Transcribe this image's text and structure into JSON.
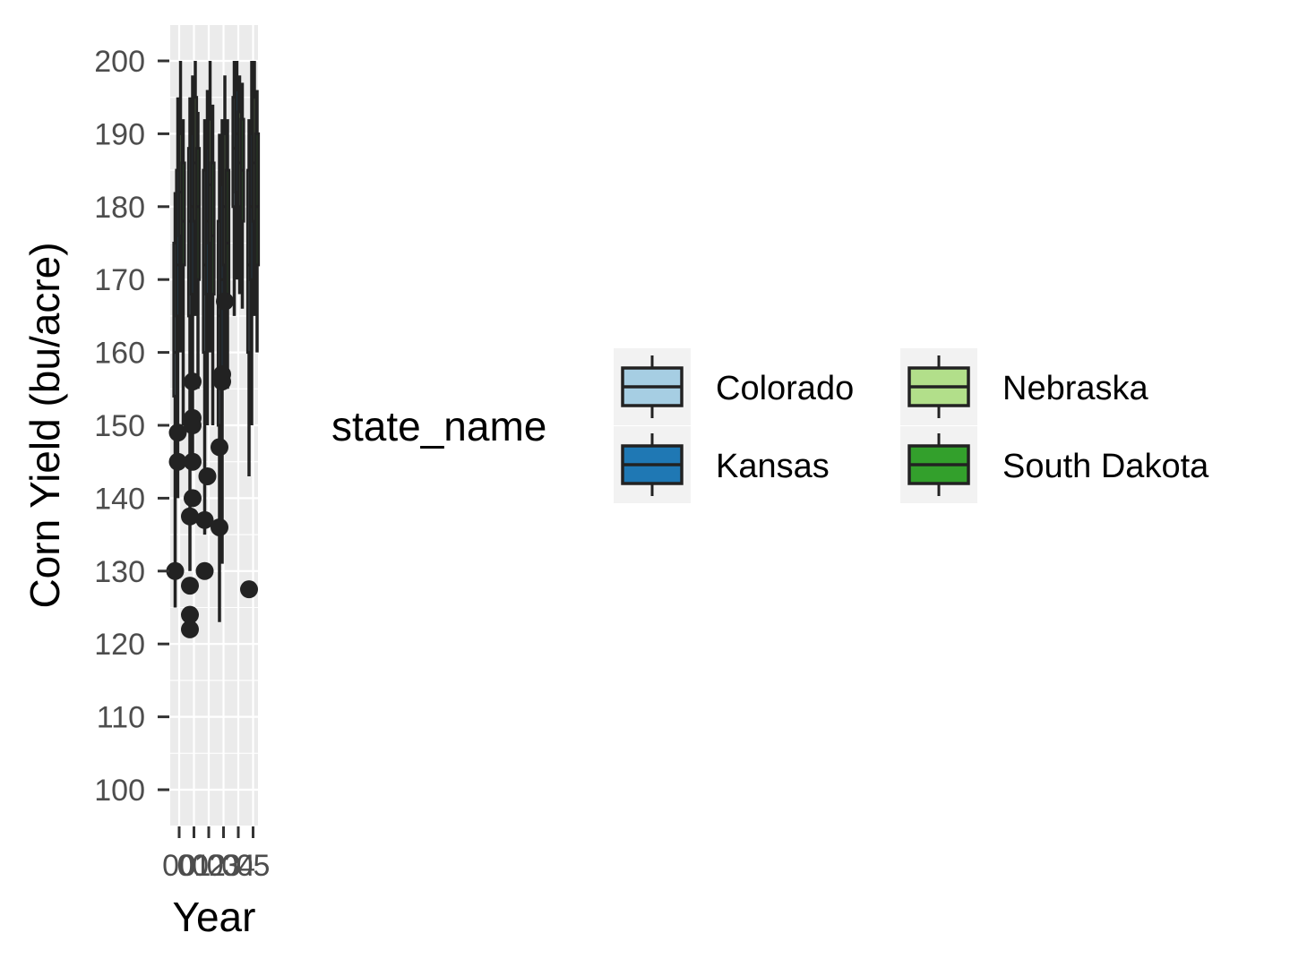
{
  "chart_data": {
    "type": "box",
    "xlabel": "Year",
    "ylabel": "Corn Yield (bu/acre)",
    "ylim": [
      95,
      205
    ],
    "yticks": [
      100,
      110,
      120,
      130,
      140,
      150,
      160,
      170,
      180,
      190,
      200
    ],
    "categories": [
      "00",
      "01",
      "02",
      "03",
      "04",
      "05"
    ],
    "grid": true,
    "legend": {
      "title": "state_name",
      "position": "right",
      "entries": [
        {
          "label": "Colorado",
          "color": "#a6cee3"
        },
        {
          "label": "Kansas",
          "color": "#1f78b4"
        },
        {
          "label": "Nebraska",
          "color": "#b2df8a"
        },
        {
          "label": "South Dakota",
          "color": "#33a02c"
        }
      ]
    },
    "series": [
      {
        "category": "00",
        "state": "Colorado",
        "whisker_low": 125,
        "q1": 154,
        "median": 160,
        "q3": 175,
        "whisker_high": 182,
        "outliers": [
          130
        ]
      },
      {
        "category": "00",
        "state": "Kansas",
        "whisker_low": 140,
        "q1": 165,
        "median": 172,
        "q3": 185,
        "whisker_high": 195,
        "outliers": [
          149,
          145
        ]
      },
      {
        "category": "00",
        "state": "Nebraska",
        "whisker_low": 160,
        "q1": 176,
        "median": 182,
        "q3": 190,
        "whisker_high": 200,
        "outliers": []
      },
      {
        "category": "00",
        "state": "South Dakota",
        "whisker_low": 150,
        "q1": 172,
        "median": 178,
        "q3": 186,
        "whisker_high": 192,
        "outliers": []
      },
      {
        "category": "01",
        "state": "Colorado",
        "whisker_low": 130,
        "q1": 165,
        "median": 178,
        "q3": 188,
        "whisker_high": 195,
        "outliers": [
          137.5,
          128,
          124,
          122
        ]
      },
      {
        "category": "01",
        "state": "Kansas",
        "whisker_low": 145,
        "q1": 168,
        "median": 180,
        "q3": 190,
        "whisker_high": 198,
        "outliers": [
          156,
          151,
          150,
          145,
          140
        ]
      },
      {
        "category": "01",
        "state": "Nebraska",
        "whisker_low": 165,
        "q1": 178,
        "median": 186,
        "q3": 195,
        "whisker_high": 200,
        "outliers": []
      },
      {
        "category": "01",
        "state": "South Dakota",
        "whisker_low": 155,
        "q1": 170,
        "median": 180,
        "q3": 188,
        "whisker_high": 193,
        "outliers": []
      },
      {
        "category": "02",
        "state": "Colorado",
        "whisker_low": 135,
        "q1": 160,
        "median": 172,
        "q3": 185,
        "whisker_high": 192,
        "outliers": [
          130,
          137
        ]
      },
      {
        "category": "02",
        "state": "Kansas",
        "whisker_low": 150,
        "q1": 168,
        "median": 178,
        "q3": 188,
        "whisker_high": 196,
        "outliers": [
          143
        ]
      },
      {
        "category": "02",
        "state": "Nebraska",
        "whisker_low": 160,
        "q1": 175,
        "median": 183,
        "q3": 192,
        "whisker_high": 200,
        "outliers": []
      },
      {
        "category": "02",
        "state": "South Dakota",
        "whisker_low": 150,
        "q1": 168,
        "median": 176,
        "q3": 186,
        "whisker_high": 194,
        "outliers": []
      },
      {
        "category": "03",
        "state": "Colorado",
        "whisker_low": 123,
        "q1": 150,
        "median": 165,
        "q3": 178,
        "whisker_high": 190,
        "outliers": [
          136,
          147
        ]
      },
      {
        "category": "03",
        "state": "Kansas",
        "whisker_low": 131,
        "q1": 158,
        "median": 170,
        "q3": 183,
        "whisker_high": 192,
        "outliers": [
          157,
          156
        ]
      },
      {
        "category": "03",
        "state": "Nebraska",
        "whisker_low": 158,
        "q1": 172,
        "median": 180,
        "q3": 190,
        "whisker_high": 198,
        "outliers": [
          167
        ]
      },
      {
        "category": "03",
        "state": "South Dakota",
        "whisker_low": 155,
        "q1": 168,
        "median": 175,
        "q3": 185,
        "whisker_high": 192,
        "outliers": []
      },
      {
        "category": "04",
        "state": "Colorado",
        "whisker_low": 165,
        "q1": 180,
        "median": 188,
        "q3": 195,
        "whisker_high": 200,
        "outliers": []
      },
      {
        "category": "04",
        "state": "Kansas",
        "whisker_low": 170,
        "q1": 182,
        "median": 190,
        "q3": 196,
        "whisker_high": 200,
        "outliers": []
      },
      {
        "category": "04",
        "state": "Nebraska",
        "whisker_low": 168,
        "q1": 180,
        "median": 186,
        "q3": 193,
        "whisker_high": 198,
        "outliers": []
      },
      {
        "category": "04",
        "state": "South Dakota",
        "whisker_low": 166,
        "q1": 178,
        "median": 185,
        "q3": 192,
        "whisker_high": 197,
        "outliers": []
      },
      {
        "category": "05",
        "state": "Colorado",
        "whisker_low": 143,
        "q1": 160,
        "median": 172,
        "q3": 185,
        "whisker_high": 192,
        "outliers": [
          127.5
        ]
      },
      {
        "category": "05",
        "state": "Kansas",
        "whisker_low": 150,
        "q1": 170,
        "median": 180,
        "q3": 190,
        "whisker_high": 200,
        "outliers": []
      },
      {
        "category": "05",
        "state": "Nebraska",
        "whisker_low": 165,
        "q1": 178,
        "median": 186,
        "q3": 195,
        "whisker_high": 200,
        "outliers": []
      },
      {
        "category": "05",
        "state": "South Dakota",
        "whisker_low": 160,
        "q1": 172,
        "median": 180,
        "q3": 190,
        "whisker_high": 196,
        "outliers": []
      }
    ]
  }
}
